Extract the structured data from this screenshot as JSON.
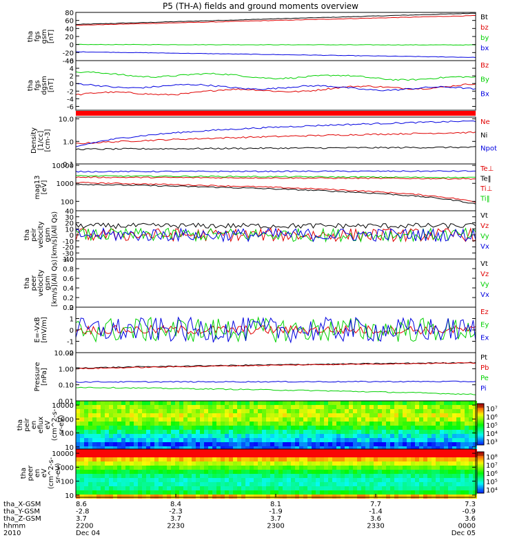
{
  "title": "P5 (TH-A) fields and ground moments overview",
  "colors": {
    "black": "#000000",
    "red": "#e00000",
    "green": "#00d000",
    "blue": "#0000e0"
  },
  "chart_data": [
    {
      "type": "line",
      "id": "fgs",
      "ylabel": [
        "tha",
        "fgs",
        "gsm",
        "[nT]"
      ],
      "ylim": [
        -40,
        80
      ],
      "ticks": [
        "80",
        "60",
        "40",
        "20",
        "0",
        "-20",
        "-40"
      ],
      "tick_values": [
        80,
        60,
        40,
        20,
        0,
        -20,
        -40
      ],
      "series": [
        {
          "name": "Bt",
          "color": "black",
          "start": 50,
          "end": 78
        },
        {
          "name": "bz",
          "color": "red",
          "start": 48,
          "end": 72
        },
        {
          "name": "by",
          "color": "green",
          "start": 0,
          "end": -1
        },
        {
          "name": "bx",
          "color": "blue",
          "start": -18,
          "end": -32
        }
      ]
    },
    {
      "type": "line",
      "id": "dgsm",
      "ylabel": [
        "tha",
        "fgs",
        "dgsm",
        "[nT]"
      ],
      "ylim": [
        -7,
        6
      ],
      "ticks": [
        "6",
        "4",
        "2",
        "0",
        "-2",
        "-4",
        "-6"
      ],
      "tick_values": [
        6,
        4,
        2,
        0,
        -2,
        -4,
        -6
      ],
      "series": [
        {
          "name": "Bz",
          "color": "red",
          "start": -3,
          "end": -0.5
        },
        {
          "name": "By",
          "color": "green",
          "start": 2.5,
          "end": 1.2
        },
        {
          "name": "Bx",
          "color": "blue",
          "start": -0.5,
          "end": -1.5
        }
      ]
    },
    {
      "type": "line",
      "id": "density",
      "log": true,
      "ylabel": [
        "Density",
        "[1/cc]",
        "[cm-3]"
      ],
      "ylim": [
        0.1,
        12
      ],
      "ticks": [
        "10.0",
        "1.0",
        "0.1"
      ],
      "tick_values": [
        10,
        1,
        0.1
      ],
      "series": [
        {
          "name": "Ne",
          "color": "red",
          "start": 0.8,
          "end": 2.5
        },
        {
          "name": "Ni",
          "color": "black",
          "start": 0.45,
          "end": 0.55
        },
        {
          "name": "Npot",
          "color": "blue",
          "start": 0.55,
          "end": 8
        }
      ]
    },
    {
      "type": "line",
      "id": "temp",
      "log": true,
      "ylabel": [
        "mag13",
        "[eV]"
      ],
      "ylim": [
        30,
        12000
      ],
      "ticks": [
        "10000",
        "1000",
        "100"
      ],
      "tick_values": [
        10000,
        1000,
        100
      ],
      "series": [
        {
          "name": "Te⊥",
          "color": "red",
          "start": 1100,
          "end": 90
        },
        {
          "name": "Te‖",
          "color": "black",
          "start": 900,
          "end": 70
        },
        {
          "name": "Ti⊥",
          "color": "red",
          "start": 2200,
          "end": 1800
        },
        {
          "name": "Ti‖",
          "color": "green",
          "start": 2600,
          "end": 2100
        },
        {
          "name": "",
          "color": "blue",
          "start": 4500,
          "end": 4800
        }
      ]
    },
    {
      "type": "line",
      "id": "peir",
      "ylabel": [
        "tha",
        "peir",
        "velocity",
        "gsm",
        "[km/s](All Qs)"
      ],
      "ylim": [
        -40,
        40
      ],
      "ticks": [
        "40",
        "30",
        "20",
        "10",
        "0",
        "-10",
        "-20",
        "-30",
        "-40"
      ],
      "tick_values": [
        40,
        30,
        20,
        10,
        0,
        -10,
        -20,
        -30,
        -40
      ],
      "series": [
        {
          "name": "Vt",
          "color": "black",
          "start": 15,
          "end": 15
        },
        {
          "name": "Vz",
          "color": "red",
          "start": 0,
          "end": 0
        },
        {
          "name": "Vy",
          "color": "green",
          "start": 0,
          "end": 0
        },
        {
          "name": "Vx",
          "color": "blue",
          "start": 0,
          "end": 0
        }
      ]
    },
    {
      "type": "line",
      "id": "peer",
      "ylabel": [
        "tha",
        "peer",
        "velocity",
        "gsm",
        "[km/s](All Qs)"
      ],
      "ylim": [
        0,
        1
      ],
      "ticks": [
        "1.0",
        "0.8",
        "0.6",
        "0.4",
        "0.2",
        "0.0"
      ],
      "tick_values": [
        1,
        0.8,
        0.6,
        0.4,
        0.2,
        0
      ],
      "series": [
        {
          "name": "Vt",
          "color": "black"
        },
        {
          "name": "Vz",
          "color": "red"
        },
        {
          "name": "Vy",
          "color": "green"
        },
        {
          "name": "Vx",
          "color": "blue"
        }
      ]
    },
    {
      "type": "line",
      "id": "efield",
      "ylabel": [
        "E=-VxB",
        "[mV/m]"
      ],
      "ylim": [
        -2,
        2
      ],
      "ticks": [
        "2",
        "1",
        "0",
        "-1",
        "-2"
      ],
      "tick_values": [
        2,
        1,
        0,
        -1,
        -2
      ],
      "series": [
        {
          "name": "Ez",
          "color": "red",
          "start": 0,
          "end": 0
        },
        {
          "name": "Ey",
          "color": "green",
          "start": 0,
          "end": 0
        },
        {
          "name": "Ex",
          "color": "blue",
          "start": 0,
          "end": 0
        }
      ]
    },
    {
      "type": "line",
      "id": "pressure",
      "log": true,
      "ylabel": [
        "Pressure",
        "[nPa]"
      ],
      "ylim": [
        0.01,
        10
      ],
      "ticks": [
        "10.00",
        "1.00",
        "0.10",
        "0.01"
      ],
      "tick_values": [
        10,
        1,
        0.1,
        0.01
      ],
      "series": [
        {
          "name": "Pt",
          "color": "black",
          "start": 1.1,
          "end": 2.4
        },
        {
          "name": "Pb",
          "color": "red",
          "start": 1.0,
          "end": 2.3
        },
        {
          "name": "Pe",
          "color": "green",
          "start": 0.07,
          "end": 0.025
        },
        {
          "name": "Pi",
          "color": "blue",
          "start": 0.15,
          "end": 0.16
        }
      ]
    },
    {
      "type": "heatmap",
      "id": "peir_en",
      "log": true,
      "ylabel": [
        "tha",
        "peir",
        "en",
        "eflux",
        "eV",
        "(cm^2-s-",
        "sr-eV)"
      ],
      "ylim": [
        7,
        20000
      ],
      "ticks": [
        "10000",
        "1000",
        "100",
        "10"
      ],
      "tick_values": [
        10000,
        1000,
        100,
        10
      ],
      "colorbar_ticks": [
        "10⁷",
        "10⁶",
        "10⁵",
        "10⁴",
        "10³"
      ],
      "colorbar_range": [
        3,
        7
      ]
    },
    {
      "type": "heatmap",
      "id": "peer_en",
      "log": true,
      "ylabel": [
        "tha",
        "peer",
        "en",
        "eV",
        "(cm^2-s-",
        "sr-eV)"
      ],
      "ylim": [
        7,
        20000
      ],
      "ticks": [
        "10000",
        "1000",
        "100",
        "10"
      ],
      "tick_values": [
        10000,
        1000,
        100,
        10
      ],
      "colorbar_ticks": [
        "10⁸",
        "10⁷",
        "10⁶",
        "10⁵",
        "10⁴"
      ],
      "colorbar_range": [
        3.5,
        8
      ]
    }
  ],
  "xaxis": {
    "row_labels": [
      "tha_X-GSM",
      "tha_Y-GSM",
      "tha_Z-GSM",
      "hhmm",
      "2010"
    ],
    "columns": [
      {
        "values": [
          "8.6",
          "-2.8",
          "3.7",
          "2200",
          "Dec 04"
        ]
      },
      {
        "values": [
          "8.4",
          "-2.3",
          "3.7",
          "2230",
          ""
        ]
      },
      {
        "values": [
          "8.1",
          "-1.9",
          "3.7",
          "2300",
          ""
        ]
      },
      {
        "values": [
          "7.7",
          "-1.4",
          "3.6",
          "2330",
          ""
        ]
      },
      {
        "values": [
          "7.3",
          "-0.9",
          "3.6",
          "0000",
          "Dec 05"
        ]
      }
    ]
  }
}
